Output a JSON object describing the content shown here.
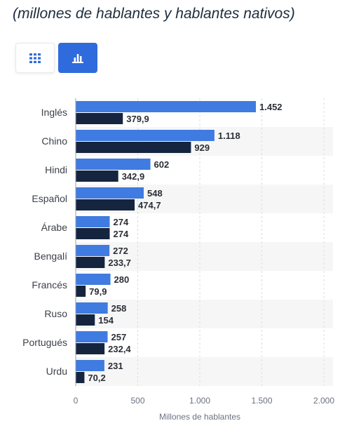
{
  "header": {
    "subtitle": "(millones de hablantes y hablantes nativos)"
  },
  "view_toggle": {
    "active": "chart",
    "table_icon": "grid-icon",
    "chart_icon": "bar-chart-icon",
    "colors": {
      "active_bg": "#2f6bdc",
      "icon_blue": "#2f6bdc",
      "icon_white": "#ffffff"
    }
  },
  "chart_data": {
    "type": "bar",
    "orientation": "horizontal",
    "categories": [
      "Inglés",
      "Chino",
      "Hindi",
      "Español",
      "Árabe",
      "Bengalí",
      "Francés",
      "Ruso",
      "Portugués",
      "Urdu"
    ],
    "series": [
      {
        "values": [
          1452,
          1118,
          602,
          548,
          274,
          272,
          280,
          258,
          257,
          231
        ],
        "labels": [
          "1.452",
          "1.118",
          "602",
          "548",
          "274",
          "272",
          "280",
          "258",
          "257",
          "231"
        ],
        "color": "#3f7be0"
      },
      {
        "values": [
          379.9,
          929,
          342.9,
          474.7,
          274,
          233.7,
          79.9,
          154,
          232.4,
          70.2
        ],
        "labels": [
          "379,9",
          "929",
          "342,9",
          "474,7",
          "274",
          "233,7",
          "79,9",
          "154",
          "232,4",
          "70,2"
        ],
        "color": "#15253f"
      }
    ],
    "xlabel": "Millones de hablantes",
    "xlim": [
      0,
      2000
    ],
    "xticks": [
      0,
      500,
      1000,
      1500,
      2000
    ],
    "xtick_labels": [
      "0",
      "500",
      "1.000",
      "1.500",
      "2.000"
    ],
    "grid": true,
    "grid_color": "#d9dde3",
    "band_color": "#f6f6f6"
  }
}
